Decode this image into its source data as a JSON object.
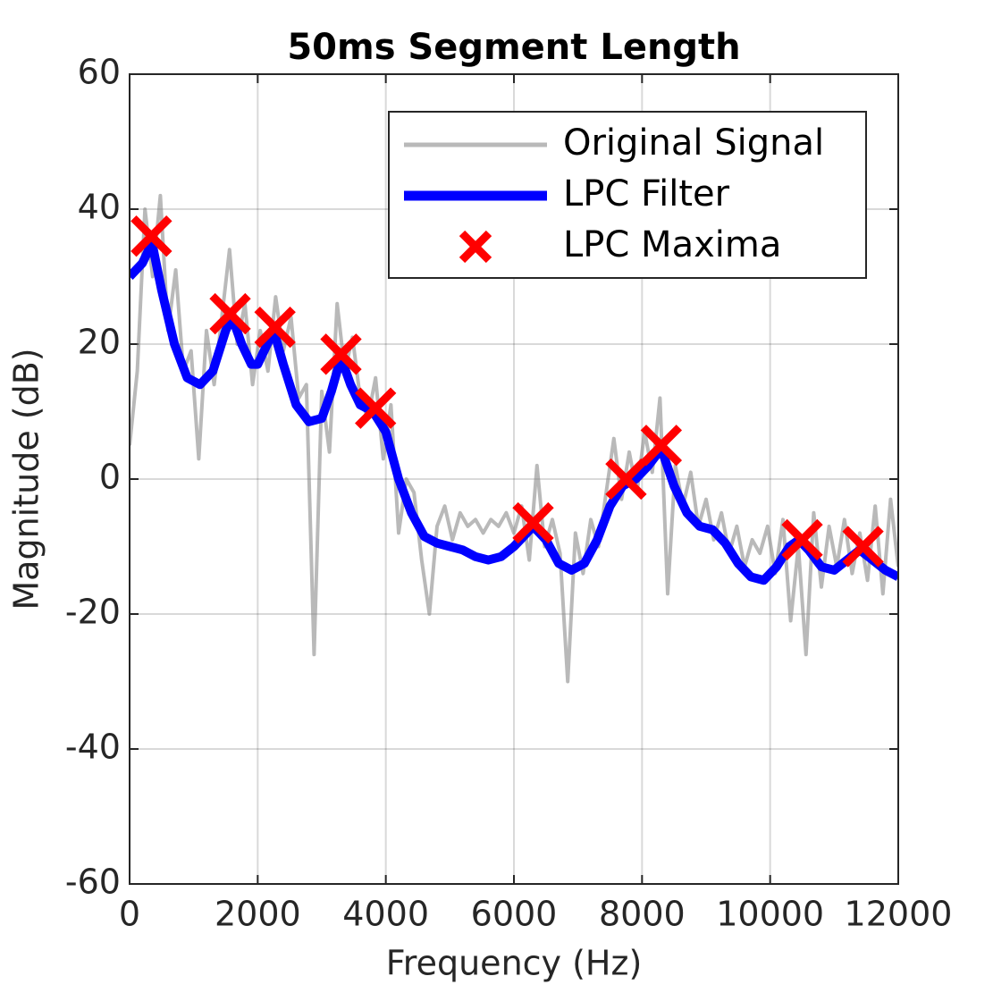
{
  "chart_data": {
    "type": "line",
    "title": "50ms Segment Length",
    "xlabel": "Frequency (Hz)",
    "ylabel": "Magnitude (dB)",
    "xlim": [
      0,
      12000
    ],
    "ylim": [
      -60,
      60
    ],
    "xticks": [
      0,
      2000,
      4000,
      6000,
      8000,
      10000,
      12000
    ],
    "yticks": [
      -60,
      -40,
      -20,
      0,
      20,
      40,
      60
    ],
    "grid": true,
    "legend": "upper right",
    "series": [
      {
        "name": "Original Signal",
        "color": "#808080",
        "style": "line",
        "x": [
          0,
          120,
          240,
          360,
          480,
          600,
          720,
          840,
          960,
          1080,
          1200,
          1320,
          1440,
          1560,
          1680,
          1800,
          1920,
          2040,
          2160,
          2280,
          2400,
          2520,
          2640,
          2760,
          2880,
          3000,
          3120,
          3240,
          3360,
          3480,
          3600,
          3720,
          3840,
          3960,
          4080,
          4200,
          4320,
          4440,
          4560,
          4680,
          4800,
          4920,
          5040,
          5160,
          5280,
          5400,
          5520,
          5640,
          5760,
          5880,
          6000,
          6120,
          6240,
          6360,
          6480,
          6600,
          6720,
          6840,
          6960,
          7080,
          7200,
          7320,
          7440,
          7560,
          7680,
          7800,
          7920,
          8040,
          8160,
          8280,
          8400,
          8520,
          8640,
          8760,
          8880,
          9000,
          9120,
          9240,
          9360,
          9480,
          9600,
          9720,
          9840,
          9960,
          10080,
          10200,
          10320,
          10440,
          10560,
          10680,
          10800,
          10920,
          11040,
          11160,
          11280,
          11400,
          11520,
          11640,
          11760,
          11880,
          12000
        ],
        "values": [
          5,
          16,
          40,
          30,
          42,
          22,
          31,
          16,
          19,
          3,
          22,
          14,
          24,
          34,
          20,
          26,
          14,
          22,
          16,
          27,
          19,
          24,
          12,
          14,
          -26,
          13,
          4,
          26,
          16,
          21,
          12,
          9,
          15,
          3,
          11,
          -8,
          0,
          -2,
          -12,
          -20,
          -7,
          -4,
          -9,
          -5,
          -7,
          -6,
          -8,
          -6,
          -7,
          -5,
          -8,
          -4,
          -12,
          2,
          -10,
          -6,
          -11,
          -30,
          -8,
          -14,
          -6,
          -10,
          -2,
          6,
          -3,
          4,
          -2,
          7,
          1,
          12,
          -17,
          2,
          -4,
          1,
          -7,
          -3,
          -9,
          -5,
          -11,
          -7,
          -13,
          -9,
          -11,
          -7,
          -14,
          -6,
          -21,
          -10,
          -26,
          -5,
          -16,
          -7,
          -13,
          -6,
          -14,
          -8,
          -15,
          -4,
          -17,
          -3,
          -13
        ]
      },
      {
        "name": "LPC Filter",
        "color": "#0000ff",
        "style": "line",
        "x": [
          0,
          200,
          350,
          500,
          700,
          900,
          1100,
          1300,
          1500,
          1600,
          1750,
          1900,
          2000,
          2100,
          2250,
          2400,
          2600,
          2800,
          3000,
          3150,
          3300,
          3450,
          3600,
          3800,
          4000,
          4200,
          4400,
          4600,
          4800,
          5000,
          5200,
          5400,
          5600,
          5800,
          6000,
          6200,
          6300,
          6500,
          6700,
          6900,
          7100,
          7300,
          7500,
          7700,
          7900,
          8100,
          8300,
          8500,
          8700,
          8900,
          9100,
          9300,
          9500,
          9700,
          9900,
          10100,
          10300,
          10450,
          10600,
          10800,
          11000,
          11200,
          11400,
          11600,
          11800,
          12000
        ],
        "values": [
          30,
          32,
          35,
          28,
          20,
          15,
          14,
          16,
          22,
          24,
          20,
          17,
          17,
          19,
          22,
          17,
          11,
          8.5,
          9,
          13,
          18,
          14,
          11,
          10,
          7,
          0,
          -5,
          -8.5,
          -9.5,
          -10,
          -10.5,
          -11.5,
          -12,
          -11.5,
          -10,
          -8,
          -7,
          -9,
          -12.5,
          -13.5,
          -12.5,
          -9,
          -4,
          -1,
          0,
          2,
          4.5,
          -1,
          -5,
          -7,
          -7.5,
          -9.5,
          -12.5,
          -14.5,
          -15,
          -13,
          -10,
          -9,
          -10.5,
          -13,
          -13.5,
          -12,
          -10.5,
          -12,
          -13.5,
          -14.5
        ]
      },
      {
        "name": "LPC Maxima",
        "color": "#ff0000",
        "style": "x-marker",
        "x": [
          340,
          1570,
          2270,
          3300,
          3840,
          6300,
          7750,
          8300,
          10500,
          11450
        ],
        "values": [
          36,
          24.5,
          22.5,
          18.5,
          10.5,
          -6.5,
          0,
          5,
          -9,
          -10
        ]
      }
    ]
  }
}
